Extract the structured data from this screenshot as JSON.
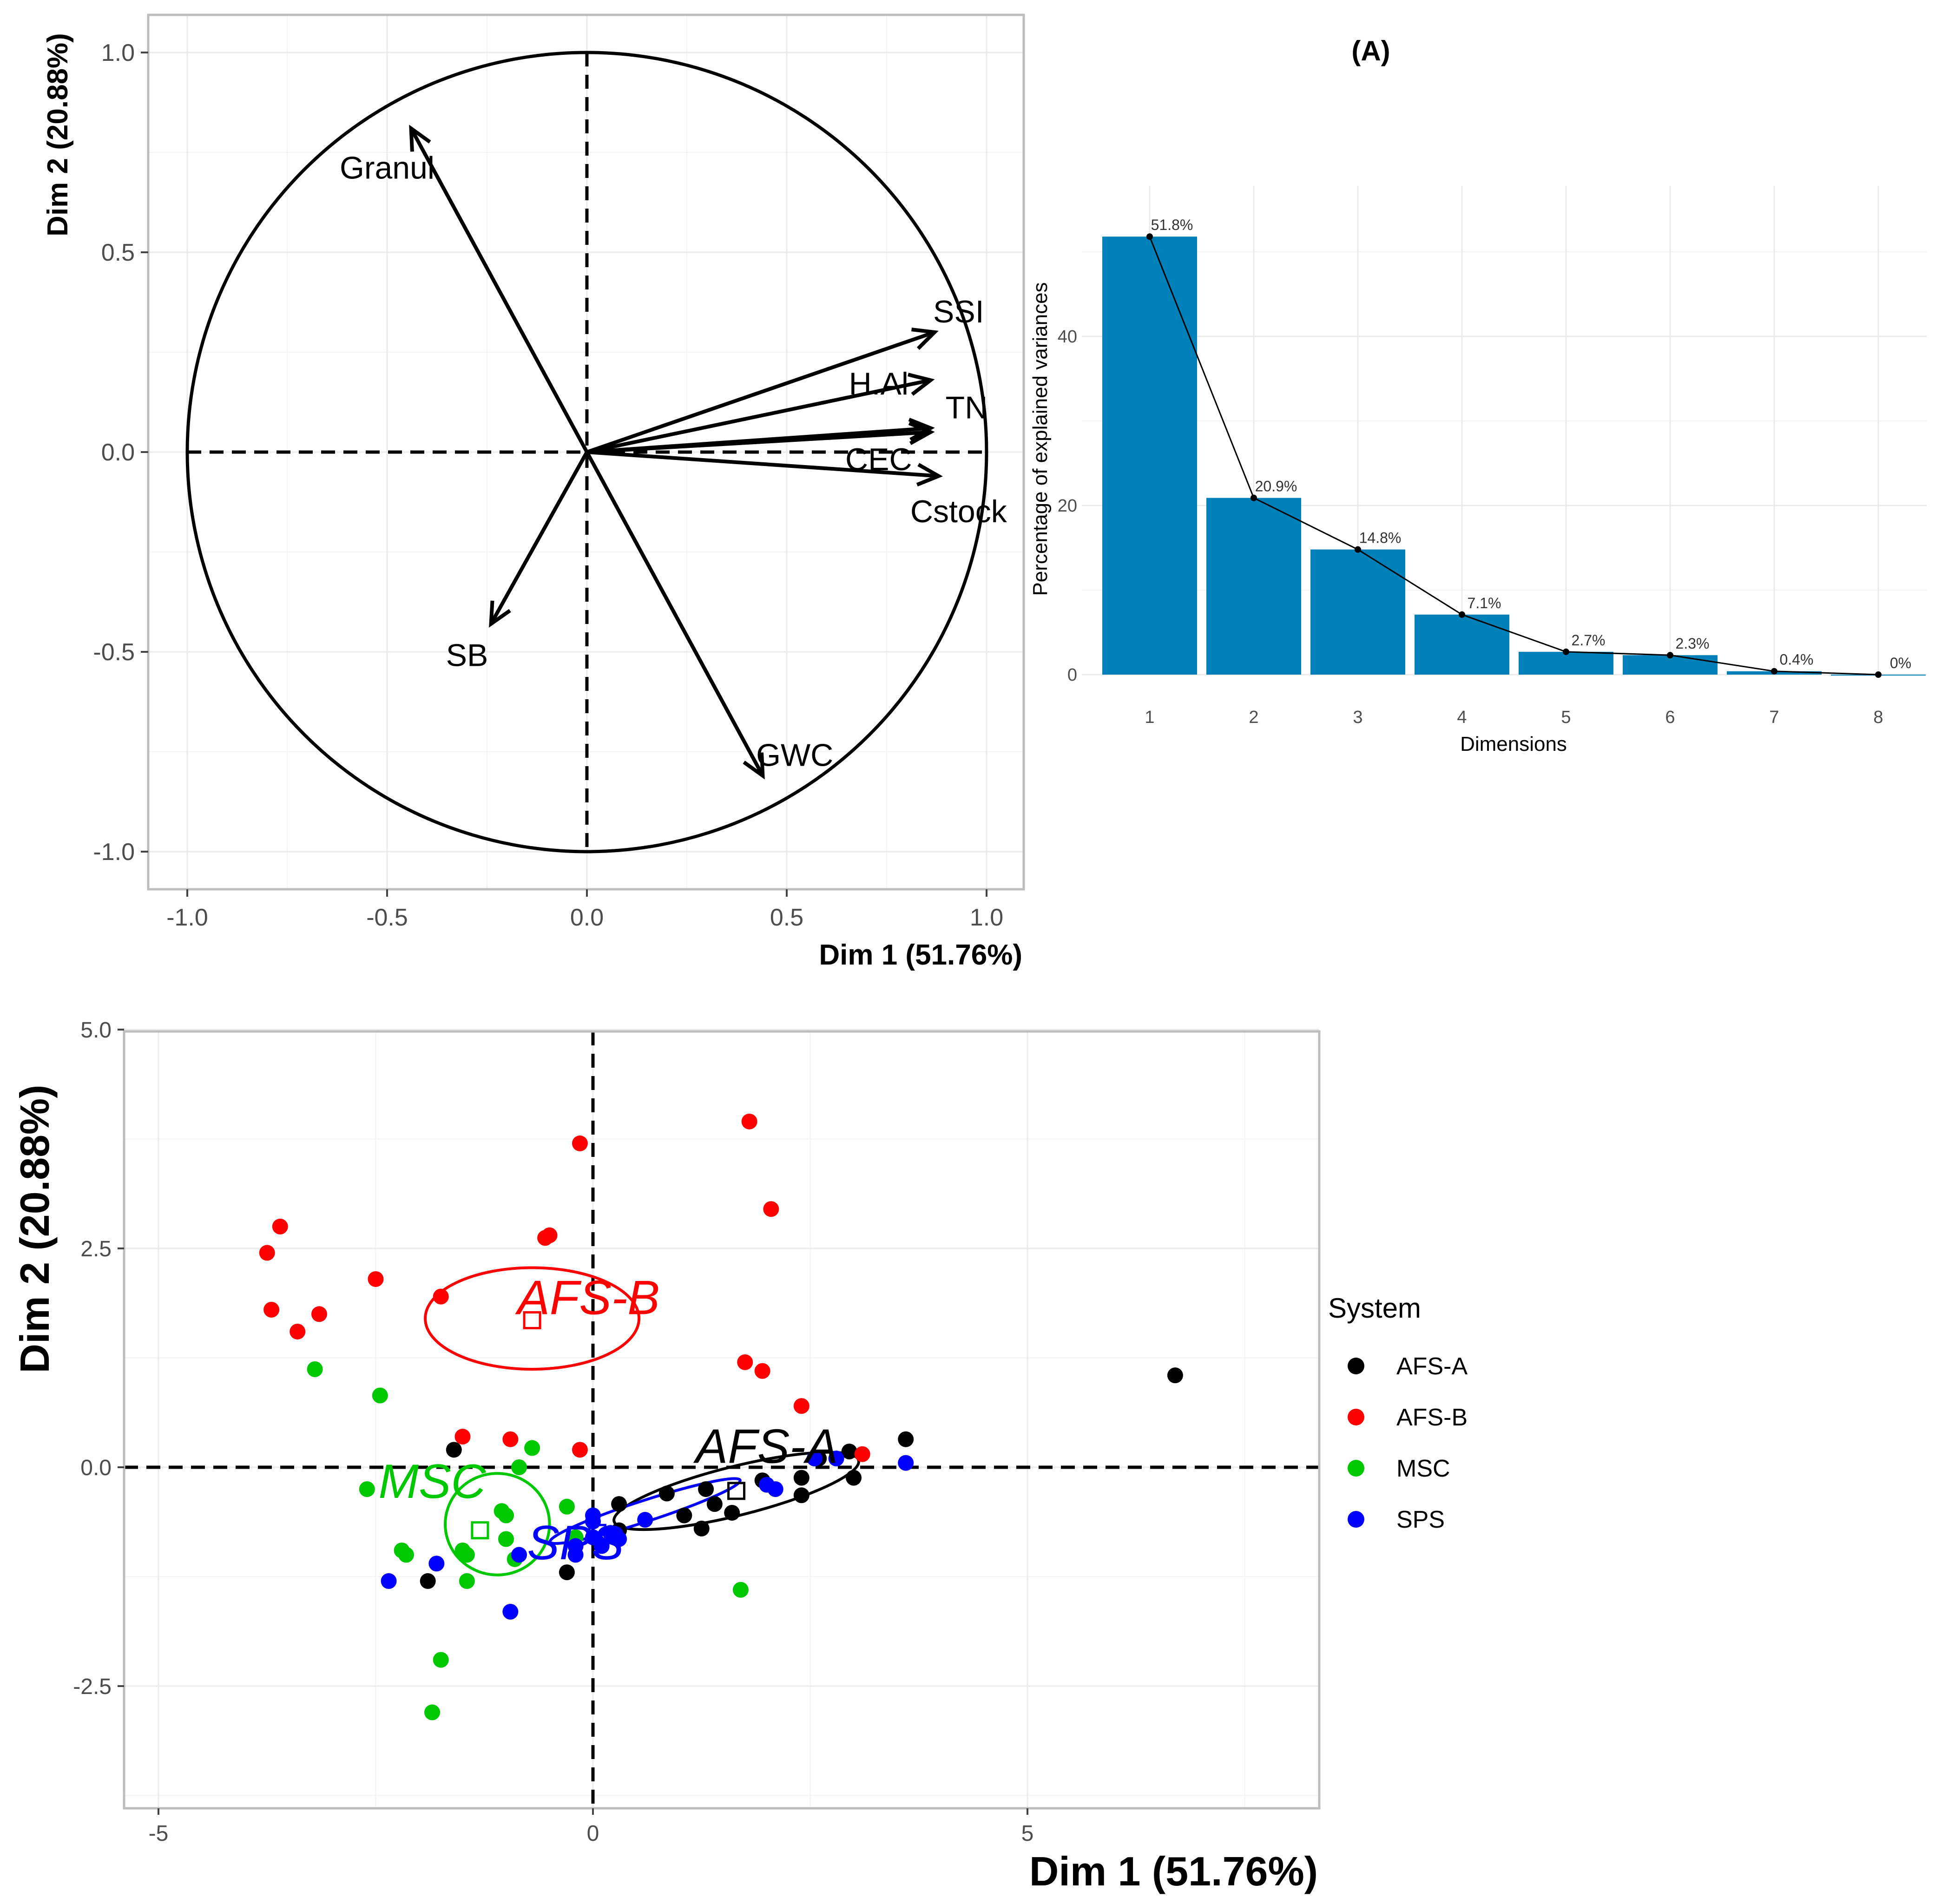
{
  "colors": {
    "AFS-A": "#000000",
    "AFS-B": "#ff0000",
    "MSC": "#00c800",
    "SPS": "#0000ff",
    "bar": "#0080b8"
  },
  "chart_data": [
    {
      "type": "scatter",
      "name": "correlation-circle",
      "xlabel": "Dim 1 (51.76%)",
      "ylabel": "Dim 2 (20.88%)",
      "xlim": [
        -1.1,
        1.1
      ],
      "ylim": [
        -1.1,
        1.1
      ],
      "xticks": [
        "-1.0",
        "-0.5",
        "0.0",
        "0.5",
        "1.0"
      ],
      "xtick_values": [
        -1.0,
        -0.5,
        0.0,
        0.5,
        1.0
      ],
      "yticks": [
        "-1.0",
        "-0.5",
        "0.0",
        "0.5",
        "1.0"
      ],
      "ytick_values": [
        -1.0,
        -0.5,
        0.0,
        0.5,
        1.0
      ],
      "variables": [
        {
          "name": "Granul",
          "x": -0.44,
          "y": 0.81
        },
        {
          "name": "SSI",
          "x": 0.87,
          "y": 0.3
        },
        {
          "name": "H.Al",
          "x": 0.86,
          "y": 0.18
        },
        {
          "name": "TN",
          "x": 0.86,
          "y": 0.06
        },
        {
          "name": "CEC",
          "x": 0.86,
          "y": 0.05
        },
        {
          "name": "Cstock",
          "x": 0.88,
          "y": -0.06
        },
        {
          "name": "SB",
          "x": -0.24,
          "y": -0.43
        },
        {
          "name": "GWC",
          "x": 0.44,
          "y": -0.81
        }
      ]
    },
    {
      "type": "bar",
      "name": "scree-plot",
      "title": "(A)",
      "xlabel": "Dimensions",
      "ylabel": "Percentage of explained variances",
      "categories": [
        "1",
        "2",
        "3",
        "4",
        "5",
        "6",
        "7",
        "8"
      ],
      "values": [
        51.8,
        20.9,
        14.8,
        7.1,
        2.7,
        2.3,
        0.4,
        0.0
      ],
      "labels": [
        "51.8%",
        "20.9%",
        "14.8%",
        "7.1%",
        "2.7%",
        "2.3%",
        "0.4%",
        "0%"
      ],
      "ylim": [
        0,
        54
      ],
      "yticks": [
        "0",
        "20",
        "40"
      ],
      "ytick_values": [
        0,
        20,
        40
      ]
    },
    {
      "type": "scatter",
      "name": "individuals-plot",
      "xlabel": "Dim 1 (51.76%)",
      "ylabel": "Dim 2 (20.88%)",
      "xlim": [
        -5.3,
        8.3
      ],
      "ylim": [
        -3.9,
        5.05
      ],
      "xticks": [
        "-5",
        "0",
        "5"
      ],
      "xtick_values": [
        -5,
        0,
        5
      ],
      "yticks": [
        "-2.5",
        "0.0",
        "2.5",
        "5.0"
      ],
      "ytick_values": [
        -2.5,
        0.0,
        2.5,
        5.0
      ],
      "legend_title": "System",
      "legend": [
        "AFS-A",
        "AFS-B",
        "MSC",
        "SPS"
      ],
      "series": [
        {
          "name": "AFS-A",
          "center": [
            1.65,
            -0.27
          ],
          "ellipse": {
            "cx": 1.65,
            "cy": -0.27,
            "rx": 1.45,
            "ry": 0.28,
            "angle": 14
          },
          "points": [
            [
              6.7,
              1.05
            ],
            [
              3.6,
              0.32
            ],
            [
              2.95,
              0.18
            ],
            [
              2.6,
              0.1
            ],
            [
              3.0,
              -0.12
            ],
            [
              2.4,
              -0.12
            ],
            [
              2.4,
              -0.32
            ],
            [
              1.95,
              -0.15
            ],
            [
              1.6,
              -0.52
            ],
            [
              1.4,
              -0.42
            ],
            [
              1.3,
              -0.25
            ],
            [
              1.05,
              -0.55
            ],
            [
              1.25,
              -0.7
            ],
            [
              0.85,
              -0.3
            ],
            [
              0.3,
              -0.42
            ],
            [
              0.3,
              -0.72
            ],
            [
              -0.3,
              -1.2
            ],
            [
              -1.9,
              -1.3
            ],
            [
              -1.6,
              0.2
            ]
          ]
        },
        {
          "name": "AFS-B",
          "center": [
            -0.7,
            1.68
          ],
          "ellipse": {
            "cx": -0.7,
            "cy": 1.7,
            "rx": 1.23,
            "ry": 0.58,
            "angle": 0
          },
          "points": [
            [
              1.8,
              3.95
            ],
            [
              2.05,
              2.95
            ],
            [
              -0.15,
              3.7
            ],
            [
              -0.5,
              2.65
            ],
            [
              -0.55,
              2.62
            ],
            [
              -3.6,
              2.75
            ],
            [
              -3.75,
              2.45
            ],
            [
              -2.5,
              2.15
            ],
            [
              -3.7,
              1.8
            ],
            [
              -3.15,
              1.75
            ],
            [
              -3.4,
              1.55
            ],
            [
              -1.75,
              1.95
            ],
            [
              1.75,
              1.2
            ],
            [
              1.95,
              1.1
            ],
            [
              2.4,
              0.7
            ],
            [
              -1.5,
              0.35
            ],
            [
              -0.95,
              0.32
            ],
            [
              -0.15,
              0.2
            ],
            [
              3.1,
              0.15
            ]
          ]
        },
        {
          "name": "MSC",
          "center": [
            -1.3,
            -0.72
          ],
          "ellipse": {
            "cx": -1.1,
            "cy": -0.65,
            "rx": 0.6,
            "ry": 0.58,
            "angle": 0
          },
          "points": [
            [
              -3.2,
              1.12
            ],
            [
              -2.45,
              0.82
            ],
            [
              -0.7,
              0.22
            ],
            [
              -0.85,
              0.0
            ],
            [
              -2.6,
              -0.25
            ],
            [
              -1.05,
              -0.5
            ],
            [
              -0.3,
              -0.45
            ],
            [
              -1.0,
              -0.55
            ],
            [
              -0.2,
              -0.8
            ],
            [
              -2.2,
              -0.95
            ],
            [
              -2.15,
              -1.0
            ],
            [
              -1.5,
              -0.95
            ],
            [
              -1.45,
              -1.0
            ],
            [
              -1.0,
              -0.82
            ],
            [
              -0.9,
              -1.05
            ],
            [
              -1.45,
              -1.3
            ],
            [
              1.7,
              -1.4
            ],
            [
              -1.75,
              -2.2
            ],
            [
              -1.85,
              -2.8
            ]
          ]
        },
        {
          "name": "SPS",
          "center": [
            0.05,
            -0.75
          ],
          "ellipse": {
            "cx": 0.6,
            "cy": -0.5,
            "rx": 1.15,
            "ry": 0.12,
            "angle": 18
          },
          "points": [
            [
              2.55,
              0.1
            ],
            [
              2.8,
              0.1
            ],
            [
              3.6,
              0.05
            ],
            [
              2.0,
              -0.2
            ],
            [
              2.1,
              -0.25
            ],
            [
              0.0,
              -0.55
            ],
            [
              0.0,
              -0.62
            ],
            [
              0.2,
              -0.75
            ],
            [
              0.3,
              -0.82
            ],
            [
              0.6,
              -0.6
            ],
            [
              -0.2,
              -0.9
            ],
            [
              -0.85,
              -1.0
            ],
            [
              -1.8,
              -1.1
            ],
            [
              -2.35,
              -1.3
            ],
            [
              -0.95,
              -1.65
            ],
            [
              0.0,
              -0.8
            ],
            [
              -0.2,
              -1.0
            ],
            [
              0.1,
              -0.9
            ]
          ]
        }
      ]
    }
  ]
}
